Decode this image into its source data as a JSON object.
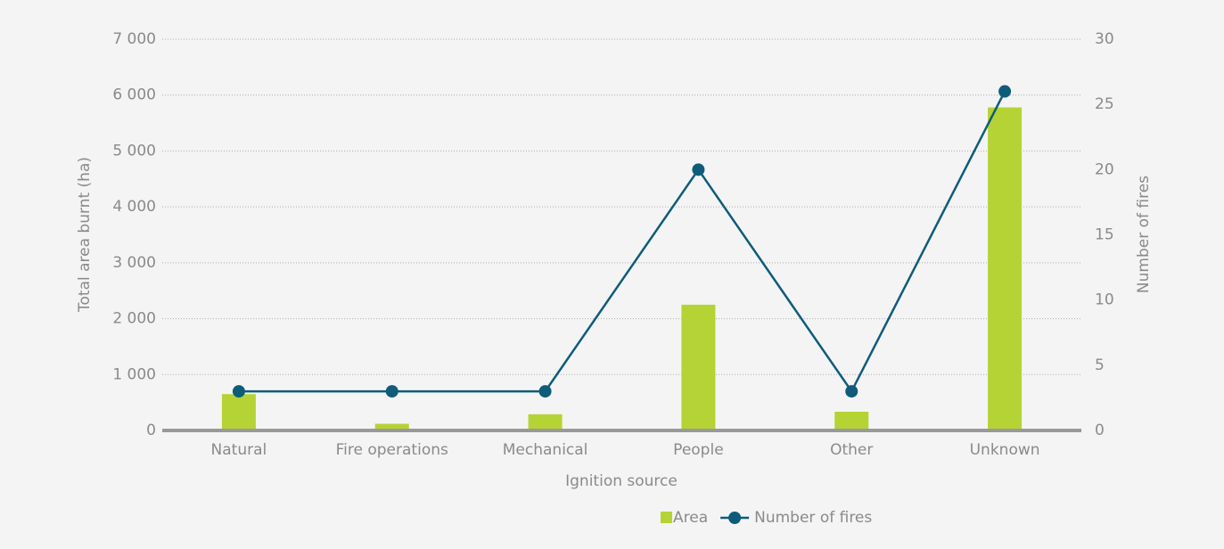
{
  "chart_data": {
    "type": "bar_line",
    "x_label": "Ignition source",
    "y_label": "Total area burnt (ha)",
    "y2_label": "Number of fires",
    "categories": [
      "Natural",
      "Fire operations",
      "Mechanical",
      "People",
      "Other",
      "Unknown"
    ],
    "series": [
      {
        "name": "Area",
        "type": "bar",
        "color": "#b5d334",
        "values": [
          650,
          120,
          290,
          2250,
          335,
          5780
        ]
      },
      {
        "name": "Number of fires",
        "type": "line",
        "axis": "y2",
        "color": "#0e5c7a",
        "values": [
          3,
          3,
          3,
          20,
          3,
          26
        ]
      }
    ],
    "ylim": [
      0,
      7000
    ],
    "yticks": [
      {
        "value": 0,
        "label": "0"
      },
      {
        "value": 1000,
        "label": "1 000"
      },
      {
        "value": 2000,
        "label": "2 000"
      },
      {
        "value": 3000,
        "label": "3 000"
      },
      {
        "value": 4000,
        "label": "4 000"
      },
      {
        "value": 5000,
        "label": "5 000"
      },
      {
        "value": 6000,
        "label": "6 000"
      },
      {
        "value": 7000,
        "label": "7 000"
      }
    ],
    "y2lim": [
      0,
      30
    ],
    "y2ticks": [
      0,
      5,
      10,
      15,
      20,
      25,
      30
    ],
    "grid": true,
    "legend": "bottom"
  }
}
